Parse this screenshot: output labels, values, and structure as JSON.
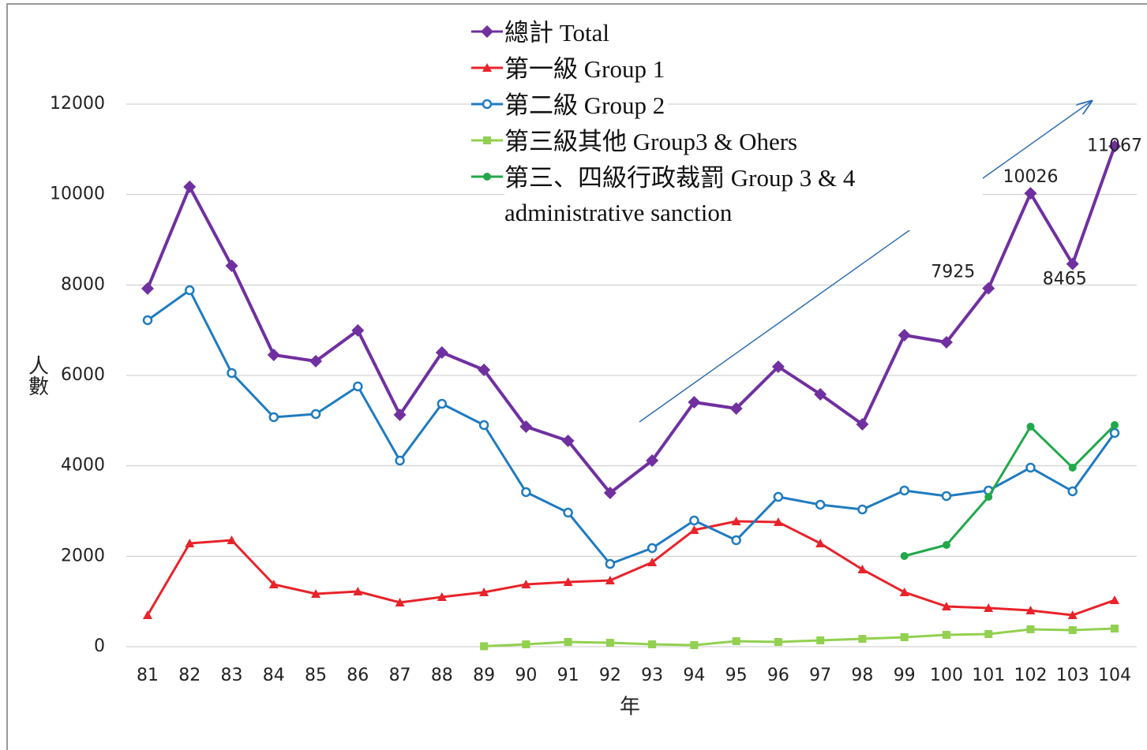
{
  "chart_data": {
    "type": "line",
    "xlabel": "年",
    "ylabel": "人數",
    "categories": [
      "81",
      "82",
      "83",
      "84",
      "85",
      "86",
      "87",
      "88",
      "89",
      "90",
      "91",
      "92",
      "93",
      "94",
      "95",
      "96",
      "97",
      "98",
      "99",
      "100",
      "101",
      "102",
      "103",
      "104"
    ],
    "ylim": [
      0,
      12000
    ],
    "yticks": [
      0,
      2000,
      4000,
      6000,
      8000,
      10000,
      12000
    ],
    "grid": true,
    "series": [
      {
        "name": "總計 Total",
        "color": "#7030a0",
        "marker": "diamond",
        "values": [
          7920,
          10170,
          8425,
          6454,
          6314,
          6995,
          5128,
          6506,
          6122,
          4866,
          4552,
          3401,
          4116,
          5407,
          5268,
          6192,
          5582,
          4919,
          6890,
          6733,
          7925,
          10026,
          8465,
          11067
        ],
        "value_labels": [
          null,
          null,
          null,
          null,
          null,
          null,
          null,
          null,
          null,
          null,
          null,
          null,
          null,
          null,
          null,
          null,
          null,
          null,
          null,
          null,
          "7925",
          "10026",
          "8465",
          "11067"
        ]
      },
      {
        "name": "第一級 Group 1",
        "color": "#e8232a",
        "marker": "triangle",
        "values": [
          698,
          2285,
          2355,
          1378,
          1169,
          1221,
          977,
          1099,
          1204,
          1378,
          1430,
          1465,
          1866,
          2581,
          2773,
          2756,
          2285,
          1709,
          1204,
          890,
          855,
          802,
          698,
          1029
        ]
      },
      {
        "name": "第二級 Group 2",
        "color": "#1f7bc0",
        "marker": "circle",
        "values": [
          7221,
          7884,
          6053,
          5076,
          5146,
          5756,
          4116,
          5372,
          4901,
          3419,
          2965,
          1831,
          2180,
          2791,
          2355,
          3314,
          3140,
          3035,
          3454,
          3332,
          3454,
          3960,
          3436,
          4727
        ]
      },
      {
        "name": "第三級其他 Group3 & Ohers",
        "color": "#92d050",
        "marker": "square",
        "values": [
          null,
          null,
          null,
          null,
          null,
          null,
          null,
          null,
          10,
          52,
          105,
          87,
          52,
          35,
          122,
          105,
          140,
          174,
          209,
          262,
          279,
          384,
          366,
          401
        ]
      },
      {
        "name": "第三、四級行政裁罰 Group 3 & 4 administrative sanction",
        "color": "#21a84a",
        "marker": "dot",
        "values": [
          null,
          null,
          null,
          null,
          null,
          null,
          null,
          null,
          null,
          null,
          null,
          null,
          null,
          null,
          null,
          null,
          null,
          null,
          2006,
          2250,
          3314,
          4866,
          3960,
          4901
        ]
      }
    ]
  }
}
